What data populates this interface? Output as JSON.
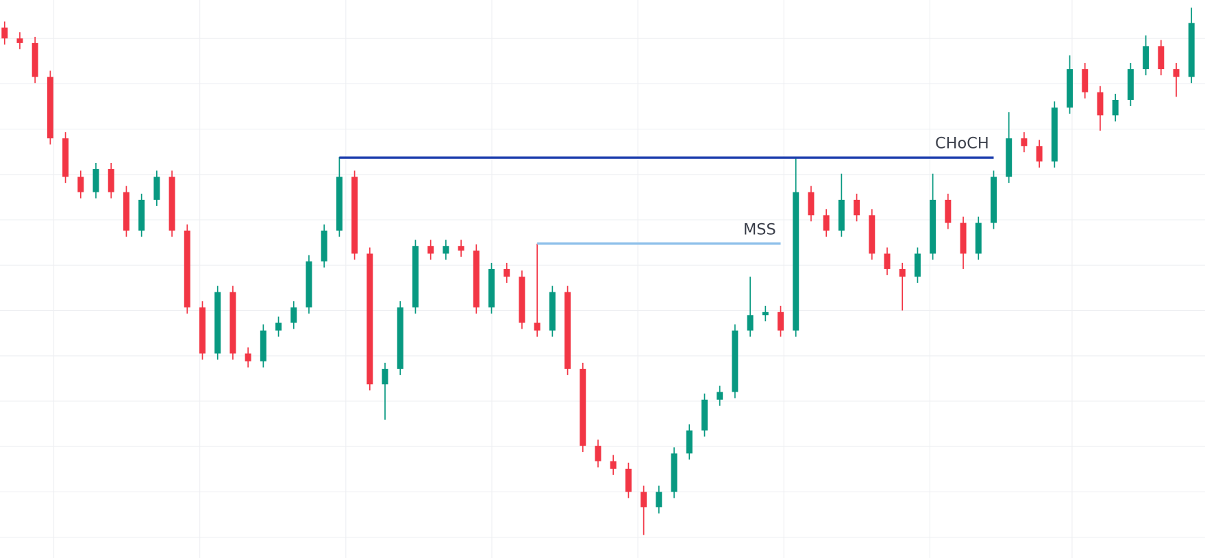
{
  "chart_data": {
    "type": "candlestick",
    "ylim": [
      0,
      726
    ],
    "up_color": "#089981",
    "down_color": "#f23645",
    "grid": true,
    "open": [
      690,
      676,
      670,
      626,
      546,
      496,
      476,
      506,
      476,
      426,
      466,
      496,
      426,
      326,
      266,
      346,
      266,
      256,
      296,
      306,
      326,
      386,
      426,
      496,
      396,
      226,
      246,
      326,
      406,
      396,
      406,
      400,
      326,
      376,
      366,
      306,
      296,
      346,
      246,
      146,
      126,
      116,
      86,
      66,
      86,
      136,
      166,
      206,
      216,
      296,
      316,
      320,
      296,
      476,
      446,
      426,
      466,
      446,
      396,
      376,
      366,
      396,
      466,
      436,
      396,
      436,
      496,
      546,
      536,
      516,
      586,
      636,
      606,
      576,
      596,
      636,
      666,
      636,
      626
    ],
    "high": [
      698,
      684,
      678,
      634,
      554,
      504,
      514,
      514,
      484,
      474,
      504,
      504,
      434,
      334,
      354,
      354,
      274,
      304,
      314,
      334,
      394,
      434,
      522,
      504,
      404,
      254,
      334,
      414,
      414,
      414,
      414,
      408,
      384,
      384,
      374,
      409,
      354,
      354,
      254,
      154,
      134,
      124,
      94,
      94,
      144,
      174,
      214,
      224,
      304,
      366,
      328,
      328,
      521,
      484,
      454,
      500,
      474,
      454,
      404,
      384,
      404,
      500,
      474,
      444,
      444,
      504,
      580,
      554,
      544,
      594,
      654,
      644,
      614,
      604,
      644,
      680,
      674,
      644,
      716
    ],
    "low": [
      668,
      662,
      618,
      538,
      488,
      468,
      468,
      468,
      418,
      418,
      458,
      418,
      318,
      258,
      258,
      258,
      248,
      248,
      288,
      298,
      318,
      378,
      418,
      388,
      218,
      180,
      238,
      318,
      388,
      388,
      392,
      318,
      318,
      358,
      298,
      288,
      288,
      238,
      138,
      118,
      108,
      78,
      30,
      58,
      78,
      128,
      158,
      198,
      208,
      288,
      308,
      288,
      288,
      438,
      418,
      418,
      438,
      388,
      368,
      322,
      358,
      388,
      428,
      376,
      388,
      428,
      488,
      528,
      508,
      508,
      578,
      598,
      556,
      568,
      588,
      628,
      628,
      600,
      618
    ],
    "close": [
      676,
      670,
      626,
      546,
      496,
      476,
      506,
      476,
      426,
      466,
      496,
      426,
      326,
      266,
      346,
      266,
      256,
      296,
      306,
      326,
      386,
      426,
      496,
      396,
      226,
      246,
      326,
      406,
      396,
      406,
      400,
      326,
      376,
      366,
      306,
      296,
      346,
      246,
      146,
      126,
      116,
      86,
      66,
      86,
      136,
      166,
      206,
      216,
      296,
      316,
      320,
      296,
      476,
      446,
      426,
      466,
      446,
      396,
      376,
      366,
      396,
      466,
      436,
      396,
      436,
      496,
      546,
      536,
      516,
      586,
      636,
      606,
      576,
      596,
      636,
      666,
      636,
      626,
      696
    ],
    "annotations": [
      {
        "label": "CHoCH",
        "value": 521,
        "from": 22,
        "to": 65,
        "color": "#1e3fae"
      },
      {
        "label": "MSS",
        "value": 409,
        "from": 35,
        "to": 51,
        "color": "#8ec0ea"
      }
    ]
  }
}
